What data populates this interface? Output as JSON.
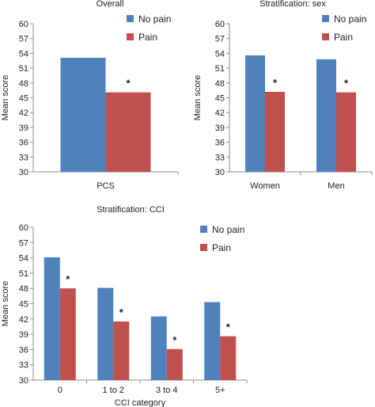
{
  "chart_data": [
    {
      "type": "bar",
      "title": "Overall",
      "xlabel": "",
      "ylabel": "Mean score",
      "ylim": [
        30,
        60
      ],
      "ytick_step": 3,
      "categories": [
        "PCS"
      ],
      "series": [
        {
          "name": "No pain",
          "values": [
            53.1
          ]
        },
        {
          "name": "Pain",
          "values": [
            46.1
          ]
        }
      ],
      "annotations": [
        {
          "category": "PCS",
          "series": "Pain",
          "text": "*"
        }
      ],
      "legend": "top-right",
      "grid": false
    },
    {
      "type": "bar",
      "title": "Stratification: sex",
      "xlabel": "",
      "ylabel": "Mean score",
      "ylim": [
        30,
        60
      ],
      "ytick_step": 3,
      "categories": [
        "Women",
        "Men"
      ],
      "series": [
        {
          "name": "No pain",
          "values": [
            53.6,
            52.8
          ]
        },
        {
          "name": "Pain",
          "values": [
            46.2,
            46.1
          ]
        }
      ],
      "annotations": [
        {
          "category": "Women",
          "series": "Pain",
          "text": "*"
        },
        {
          "category": "Men",
          "series": "Pain",
          "text": "*"
        }
      ],
      "legend": "top-right",
      "grid": false
    },
    {
      "type": "bar",
      "title": "Stratification: CCI",
      "xlabel": "CCI category",
      "ylabel": "Mean score",
      "ylim": [
        30,
        60
      ],
      "ytick_step": 3,
      "categories": [
        "0",
        "1 to 2",
        "3 to 4",
        "5+"
      ],
      "series": [
        {
          "name": "No pain",
          "values": [
            54.1,
            48.1,
            42.5,
            45.3
          ]
        },
        {
          "name": "Pain",
          "values": [
            48.0,
            41.5,
            36.1,
            38.6
          ]
        }
      ],
      "annotations": [
        {
          "category": "0",
          "series": "Pain",
          "text": "*"
        },
        {
          "category": "1 to 2",
          "series": "Pain",
          "text": "*"
        },
        {
          "category": "3 to 4",
          "series": "Pain",
          "text": "*"
        },
        {
          "category": "5+",
          "series": "Pain",
          "text": "*"
        }
      ],
      "legend": "top-right",
      "grid": false
    }
  ],
  "colors": {
    "No pain": "#4f81bd",
    "Pain": "#c0504d",
    "axis": "#8c8c8c"
  }
}
